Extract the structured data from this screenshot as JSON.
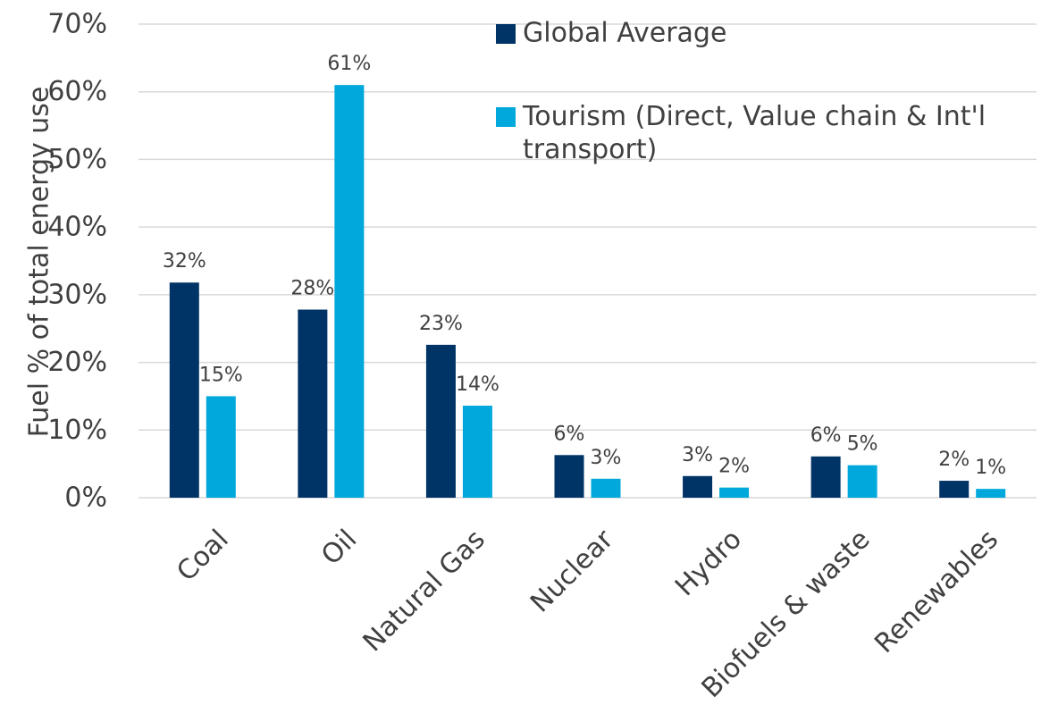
{
  "chart_data": {
    "type": "bar",
    "title": "",
    "xlabel": "",
    "ylabel": "Fuel % of total energy use",
    "ylim": [
      0,
      70
    ],
    "y_tick_step": 10,
    "y_tick_format": "percent",
    "grid": true,
    "legend_position": "top-right",
    "categories": [
      "Coal",
      "Oil",
      "Natural Gas",
      "Nuclear",
      "Hydro",
      "Biofuels & waste",
      "Renewables"
    ],
    "series": [
      {
        "name": "Global Average",
        "color": "#003366",
        "values": [
          31.8,
          27.8,
          22.6,
          6.3,
          3.2,
          6.1,
          2.5
        ],
        "data_labels": [
          "32%",
          "28%",
          "23%",
          "6%",
          "3%",
          "6%",
          "2%"
        ]
      },
      {
        "name": "Tourism (Direct, Value chain & Int'l transport)",
        "color": "#00A8DC",
        "values": [
          15.0,
          61.0,
          13.6,
          2.8,
          1.5,
          4.8,
          1.3
        ],
        "data_labels": [
          "15%",
          "61%",
          "14%",
          "3%",
          "2%",
          "5%",
          "1%"
        ]
      }
    ]
  }
}
